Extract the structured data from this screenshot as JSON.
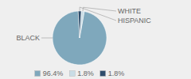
{
  "chart_data": {
    "type": "pie",
    "categories": [
      "BLACK",
      "WHITE",
      "HISPANIC"
    ],
    "values": [
      96.4,
      1.8,
      1.8
    ],
    "value_labels": [
      "96.4%",
      "1.8%",
      "1.8%"
    ],
    "colors": [
      "#7fa8bc",
      "#c9dde6",
      "#2e4d6b"
    ],
    "legend": "bottom"
  }
}
